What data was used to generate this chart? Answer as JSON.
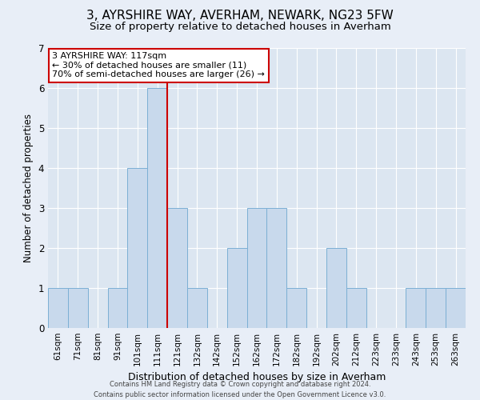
{
  "title": "3, AYRSHIRE WAY, AVERHAM, NEWARK, NG23 5FW",
  "subtitle": "Size of property relative to detached houses in Averham",
  "xlabel": "Distribution of detached houses by size in Averham",
  "ylabel": "Number of detached properties",
  "bar_labels": [
    "61sqm",
    "71sqm",
    "81sqm",
    "91sqm",
    "101sqm",
    "111sqm",
    "121sqm",
    "132sqm",
    "142sqm",
    "152sqm",
    "162sqm",
    "172sqm",
    "182sqm",
    "192sqm",
    "202sqm",
    "212sqm",
    "223sqm",
    "233sqm",
    "243sqm",
    "253sqm",
    "263sqm"
  ],
  "bar_heights": [
    1,
    1,
    0,
    1,
    4,
    6,
    3,
    1,
    0,
    2,
    3,
    3,
    1,
    0,
    2,
    1,
    0,
    0,
    1,
    1,
    1
  ],
  "bar_color": "#c8d9ec",
  "bar_edge_color": "#7bafd4",
  "vline_x": 5.5,
  "vline_color": "#cc0000",
  "annotation_title": "3 AYRSHIRE WAY: 117sqm",
  "annotation_line1": "← 30% of detached houses are smaller (11)",
  "annotation_line2": "70% of semi-detached houses are larger (26) →",
  "annotation_box_edge": "#cc0000",
  "ylim": [
    0,
    7
  ],
  "yticks": [
    0,
    1,
    2,
    3,
    4,
    5,
    6,
    7
  ],
  "background_color": "#e8eef7",
  "plot_background": "#dce6f1",
  "footer1": "Contains HM Land Registry data © Crown copyright and database right 2024.",
  "footer2": "Contains public sector information licensed under the Open Government Licence v3.0.",
  "title_fontsize": 11,
  "subtitle_fontsize": 9.5,
  "tick_fontsize": 7.5,
  "ylabel_fontsize": 8.5,
  "xlabel_fontsize": 9,
  "footer_fontsize": 6.0
}
